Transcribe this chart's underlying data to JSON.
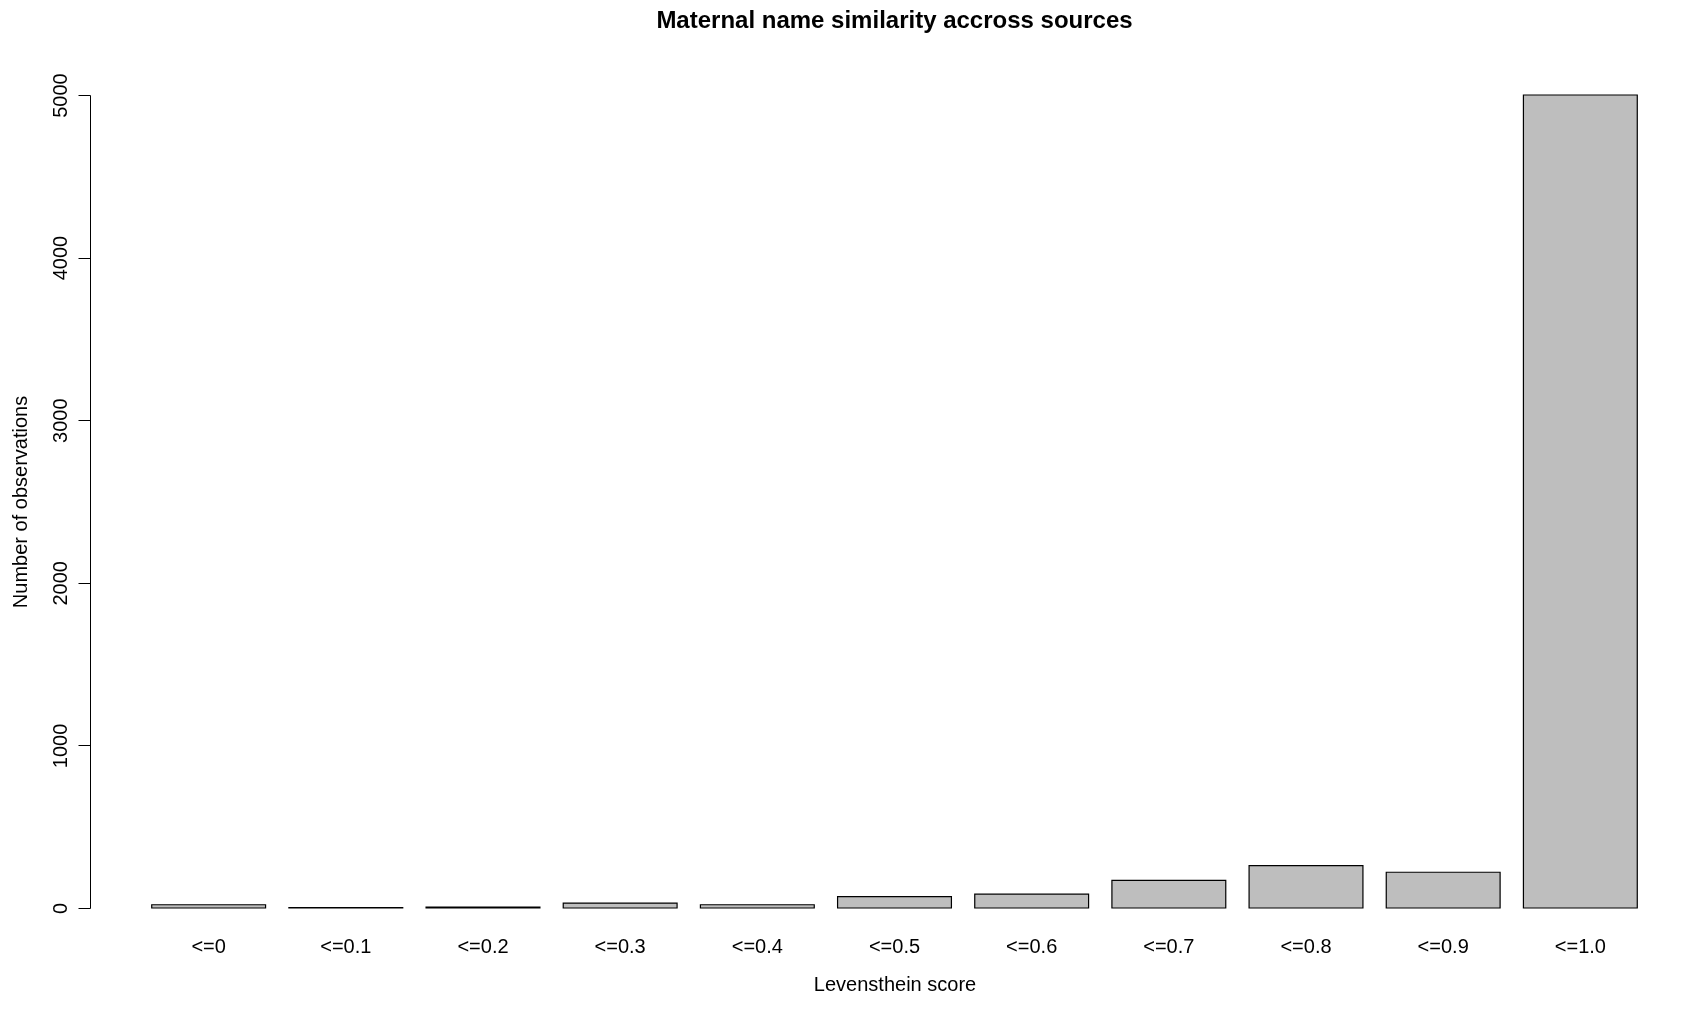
{
  "chart_data": {
    "type": "bar",
    "title": "Maternal name similarity accross sources",
    "xlabel": "Levensthein score",
    "ylabel": "Number of observations",
    "categories": [
      "<=0",
      "<=0.1",
      "<=0.2",
      "<=0.3",
      "<=0.4",
      "<=0.5",
      "<=0.6",
      "<=0.7",
      "<=0.8",
      "<=0.9",
      "<=1.0"
    ],
    "values": [
      20,
      3,
      6,
      30,
      20,
      70,
      85,
      170,
      260,
      220,
      5000
    ],
    "color": "#bebebe",
    "ylim": [
      0,
      5000
    ],
    "yticks": [
      0,
      1000,
      2000,
      3000,
      4000,
      5000
    ],
    "grid": false
  }
}
